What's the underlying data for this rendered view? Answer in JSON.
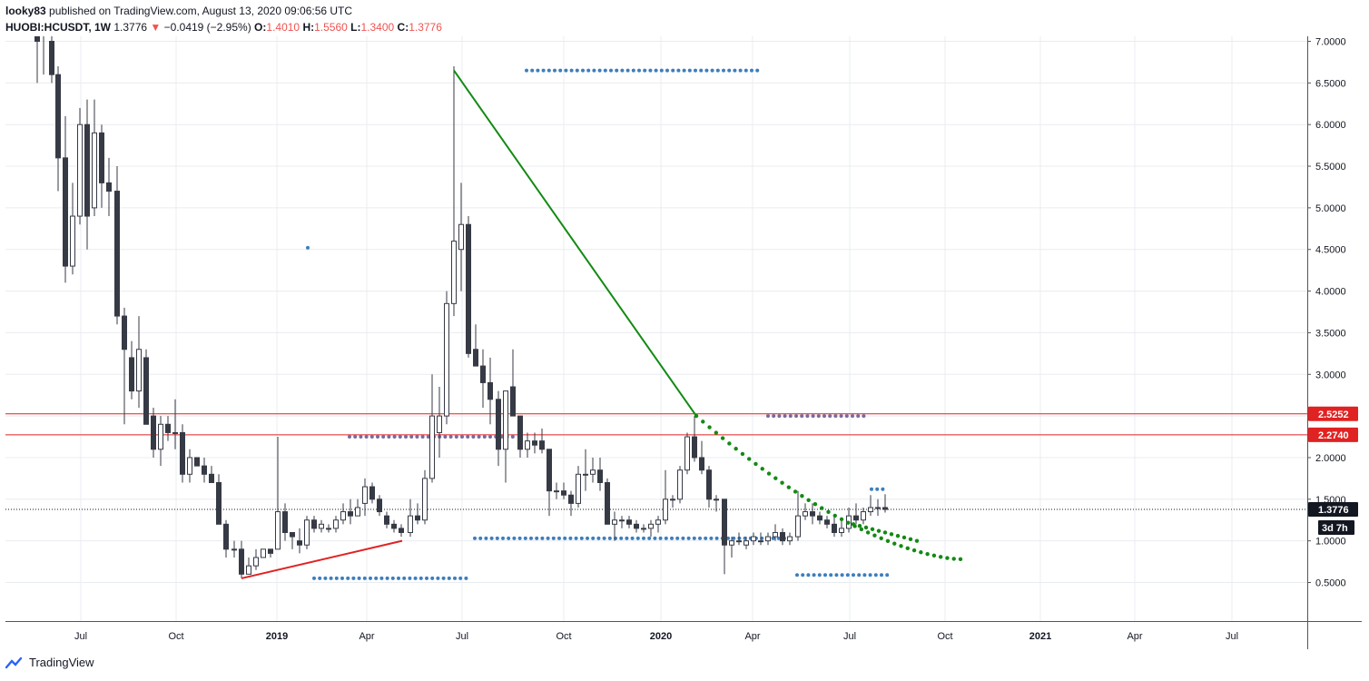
{
  "header": {
    "author": "looky83",
    "published_text": "published on TradingView.com, August 13, 2020 09:06:56 UTC",
    "symbol": "HUOBI:HCUSDT, 1W",
    "last": "1.3776",
    "change": "−0.0419 (−2.95%)",
    "o_label": "O:",
    "o": "1.4010",
    "h_label": "H:",
    "h": "1.5560",
    "l_label": "L:",
    "l": "1.3400",
    "c_label": "C:",
    "c": "1.3776"
  },
  "footer": {
    "brand": "TradingView"
  },
  "colors": {
    "up_fill": "#ffffff",
    "down_fill": "#363a45",
    "wick": "#363a45",
    "grid": "#e9ecf0",
    "resistance": "#e02222",
    "trendline": "#138a13",
    "blue_dots": "#3d7ebd",
    "purple_dots": "#7a6a9e",
    "support_line": "#e02222"
  },
  "chart_data": {
    "type": "candlestick",
    "ylim": [
      0.0,
      7.0
    ],
    "y_ticks": [
      "7.0000",
      "6.5000",
      "6.0000",
      "5.5000",
      "5.0000",
      "4.5000",
      "4.0000",
      "3.5000",
      "3.0000",
      "2.5000",
      "2.0000",
      "1.5000",
      "1.0000",
      "0.5000"
    ],
    "x_ticks": [
      {
        "label": "Jul",
        "x": 89
      },
      {
        "label": "Oct",
        "x": 194
      },
      {
        "label": "2019",
        "x": 305,
        "bold": true
      },
      {
        "label": "Apr",
        "x": 404
      },
      {
        "label": "Jul",
        "x": 509
      },
      {
        "label": "Oct",
        "x": 621
      },
      {
        "label": "2020",
        "x": 728,
        "bold": true
      },
      {
        "label": "Apr",
        "x": 829
      },
      {
        "label": "Jul",
        "x": 936
      },
      {
        "label": "Oct",
        "x": 1041
      },
      {
        "label": "2021",
        "x": 1146,
        "bold": true
      },
      {
        "label": "Apr",
        "x": 1250
      },
      {
        "label": "Jul",
        "x": 1357
      }
    ],
    "price_labels": [
      {
        "value": 2.5252,
        "text": "2.5252",
        "color": "#e02222"
      },
      {
        "value": 2.274,
        "text": "2.2740",
        "color": "#e02222"
      },
      {
        "value": 1.3776,
        "text": "1.3776",
        "color": "#131722"
      }
    ],
    "countdown": "3d 7h",
    "horizontal_lines": [
      2.5252,
      2.274
    ],
    "last_price": 1.3776,
    "candles": [
      {
        "x": 41,
        "o": 7.4,
        "h": 7.6,
        "l": 6.5,
        "c": 7.0
      },
      {
        "x": 48,
        "o": 7.2,
        "h": 7.5,
        "l": 6.6,
        "c": 7.1
      },
      {
        "x": 57,
        "o": 7.0,
        "h": 7.2,
        "l": 6.5,
        "c": 6.6
      },
      {
        "x": 64,
        "o": 6.6,
        "h": 6.7,
        "l": 5.2,
        "c": 5.6
      },
      {
        "x": 72,
        "o": 5.6,
        "h": 6.1,
        "l": 4.1,
        "c": 4.3
      },
      {
        "x": 80,
        "o": 4.3,
        "h": 5.3,
        "l": 4.2,
        "c": 4.9
      },
      {
        "x": 88,
        "o": 4.9,
        "h": 6.2,
        "l": 4.8,
        "c": 6.0
      },
      {
        "x": 96,
        "o": 6.0,
        "h": 6.3,
        "l": 4.5,
        "c": 4.9
      },
      {
        "x": 104,
        "o": 5.0,
        "h": 6.3,
        "l": 4.9,
        "c": 5.9
      },
      {
        "x": 112,
        "o": 5.9,
        "h": 6.0,
        "l": 5.0,
        "c": 5.3
      },
      {
        "x": 120,
        "o": 5.3,
        "h": 5.6,
        "l": 4.9,
        "c": 5.2
      },
      {
        "x": 129,
        "o": 5.2,
        "h": 5.5,
        "l": 3.6,
        "c": 3.7
      },
      {
        "x": 137,
        "o": 3.7,
        "h": 3.8,
        "l": 2.4,
        "c": 3.3
      },
      {
        "x": 145,
        "o": 3.2,
        "h": 3.4,
        "l": 2.7,
        "c": 2.8
      },
      {
        "x": 153,
        "o": 2.8,
        "h": 3.7,
        "l": 2.6,
        "c": 3.3
      },
      {
        "x": 161,
        "o": 3.2,
        "h": 3.3,
        "l": 2.4,
        "c": 2.4
      },
      {
        "x": 169,
        "o": 2.5,
        "h": 2.6,
        "l": 2.0,
        "c": 2.1
      },
      {
        "x": 177,
        "o": 2.1,
        "h": 2.5,
        "l": 1.9,
        "c": 2.4
      },
      {
        "x": 185,
        "o": 2.4,
        "h": 2.5,
        "l": 2.2,
        "c": 2.3
      },
      {
        "x": 193,
        "o": 2.3,
        "h": 2.7,
        "l": 2.1,
        "c": 2.3
      },
      {
        "x": 201,
        "o": 2.3,
        "h": 2.4,
        "l": 1.7,
        "c": 1.8
      },
      {
        "x": 209,
        "o": 1.8,
        "h": 2.1,
        "l": 1.7,
        "c": 2.0
      },
      {
        "x": 217,
        "o": 2.0,
        "h": 2.0,
        "l": 1.9,
        "c": 1.9
      },
      {
        "x": 225,
        "o": 1.9,
        "h": 2.0,
        "l": 1.7,
        "c": 1.8
      },
      {
        "x": 233,
        "o": 1.8,
        "h": 1.9,
        "l": 1.7,
        "c": 1.7
      },
      {
        "x": 241,
        "o": 1.7,
        "h": 1.8,
        "l": 1.2,
        "c": 1.2
      },
      {
        "x": 249,
        "o": 1.2,
        "h": 1.25,
        "l": 0.8,
        "c": 0.9
      },
      {
        "x": 258,
        "o": 0.9,
        "h": 1.0,
        "l": 0.8,
        "c": 0.9
      },
      {
        "x": 266,
        "o": 0.9,
        "h": 1.0,
        "l": 0.55,
        "c": 0.6
      },
      {
        "x": 274,
        "o": 0.6,
        "h": 0.8,
        "l": 0.6,
        "c": 0.7
      },
      {
        "x": 282,
        "o": 0.7,
        "h": 0.9,
        "l": 0.65,
        "c": 0.8
      },
      {
        "x": 290,
        "o": 0.8,
        "h": 0.9,
        "l": 0.8,
        "c": 0.9
      },
      {
        "x": 298,
        "o": 0.9,
        "h": 0.9,
        "l": 0.8,
        "c": 0.85
      },
      {
        "x": 306,
        "o": 0.9,
        "h": 2.25,
        "l": 0.9,
        "c": 1.35
      },
      {
        "x": 314,
        "o": 1.35,
        "h": 1.45,
        "l": 1.0,
        "c": 1.1
      },
      {
        "x": 322,
        "o": 1.1,
        "h": 1.1,
        "l": 0.9,
        "c": 1.05
      },
      {
        "x": 330,
        "o": 1.0,
        "h": 1.15,
        "l": 0.85,
        "c": 0.95
      },
      {
        "x": 338,
        "o": 0.95,
        "h": 1.3,
        "l": 0.9,
        "c": 1.25
      },
      {
        "x": 346,
        "o": 1.25,
        "h": 1.3,
        "l": 1.1,
        "c": 1.15
      },
      {
        "x": 354,
        "o": 1.15,
        "h": 1.25,
        "l": 1.1,
        "c": 1.2
      },
      {
        "x": 362,
        "o": 1.15,
        "h": 1.2,
        "l": 1.1,
        "c": 1.15
      },
      {
        "x": 370,
        "o": 1.15,
        "h": 1.3,
        "l": 1.1,
        "c": 1.25
      },
      {
        "x": 378,
        "o": 1.25,
        "h": 1.45,
        "l": 1.2,
        "c": 1.35
      },
      {
        "x": 386,
        "o": 1.35,
        "h": 1.5,
        "l": 1.2,
        "c": 1.3
      },
      {
        "x": 394,
        "o": 1.3,
        "h": 1.5,
        "l": 1.3,
        "c": 1.4
      },
      {
        "x": 402,
        "o": 1.45,
        "h": 1.75,
        "l": 1.3,
        "c": 1.65
      },
      {
        "x": 410,
        "o": 1.65,
        "h": 1.7,
        "l": 1.45,
        "c": 1.5
      },
      {
        "x": 418,
        "o": 1.5,
        "h": 1.55,
        "l": 1.3,
        "c": 1.35
      },
      {
        "x": 426,
        "o": 1.3,
        "h": 1.35,
        "l": 1.15,
        "c": 1.2
      },
      {
        "x": 434,
        "o": 1.2,
        "h": 1.25,
        "l": 1.1,
        "c": 1.15
      },
      {
        "x": 442,
        "o": 1.15,
        "h": 1.2,
        "l": 1.05,
        "c": 1.1
      },
      {
        "x": 452,
        "o": 1.1,
        "h": 1.5,
        "l": 1.05,
        "c": 1.3
      },
      {
        "x": 460,
        "o": 1.3,
        "h": 1.45,
        "l": 1.2,
        "c": 1.25
      },
      {
        "x": 468,
        "o": 1.25,
        "h": 1.85,
        "l": 1.2,
        "c": 1.75
      },
      {
        "x": 476,
        "o": 1.75,
        "h": 3.0,
        "l": 1.7,
        "c": 2.5
      },
      {
        "x": 484,
        "o": 2.3,
        "h": 2.85,
        "l": 2.0,
        "c": 2.5
      },
      {
        "x": 492,
        "o": 2.5,
        "h": 4.0,
        "l": 2.4,
        "c": 3.85
      },
      {
        "x": 500,
        "o": 3.85,
        "h": 6.7,
        "l": 3.7,
        "c": 4.6
      },
      {
        "x": 508,
        "o": 4.5,
        "h": 5.3,
        "l": 4.0,
        "c": 4.8
      },
      {
        "x": 516,
        "o": 4.8,
        "h": 4.9,
        "l": 3.2,
        "c": 3.25
      },
      {
        "x": 524,
        "o": 3.3,
        "h": 3.6,
        "l": 3.1,
        "c": 3.1
      },
      {
        "x": 532,
        "o": 3.1,
        "h": 3.3,
        "l": 2.6,
        "c": 2.9
      },
      {
        "x": 540,
        "o": 2.9,
        "h": 3.2,
        "l": 2.4,
        "c": 2.7
      },
      {
        "x": 549,
        "o": 2.7,
        "h": 2.8,
        "l": 1.9,
        "c": 2.1
      },
      {
        "x": 557,
        "o": 2.1,
        "h": 2.8,
        "l": 1.7,
        "c": 2.8
      },
      {
        "x": 565,
        "o": 2.85,
        "h": 3.3,
        "l": 2.5,
        "c": 2.5
      },
      {
        "x": 573,
        "o": 2.5,
        "h": 2.5,
        "l": 2.0,
        "c": 2.1
      },
      {
        "x": 581,
        "o": 2.1,
        "h": 2.3,
        "l": 2.0,
        "c": 2.2
      },
      {
        "x": 589,
        "o": 2.2,
        "h": 2.3,
        "l": 2.05,
        "c": 2.15
      },
      {
        "x": 597,
        "o": 2.2,
        "h": 2.35,
        "l": 2.05,
        "c": 2.1
      },
      {
        "x": 605,
        "o": 2.1,
        "h": 2.1,
        "l": 1.3,
        "c": 1.6
      },
      {
        "x": 613,
        "o": 1.6,
        "h": 1.7,
        "l": 1.5,
        "c": 1.6
      },
      {
        "x": 621,
        "o": 1.6,
        "h": 1.7,
        "l": 1.5,
        "c": 1.55
      },
      {
        "x": 629,
        "o": 1.55,
        "h": 1.6,
        "l": 1.3,
        "c": 1.45
      },
      {
        "x": 637,
        "o": 1.45,
        "h": 1.9,
        "l": 1.4,
        "c": 1.8
      },
      {
        "x": 645,
        "o": 1.8,
        "h": 2.1,
        "l": 1.6,
        "c": 1.8
      },
      {
        "x": 653,
        "o": 1.8,
        "h": 2.0,
        "l": 1.7,
        "c": 1.85
      },
      {
        "x": 661,
        "o": 1.85,
        "h": 2.0,
        "l": 1.6,
        "c": 1.7
      },
      {
        "x": 669,
        "o": 1.7,
        "h": 1.75,
        "l": 1.2,
        "c": 1.2
      },
      {
        "x": 677,
        "o": 1.2,
        "h": 1.35,
        "l": 1.0,
        "c": 1.25
      },
      {
        "x": 685,
        "o": 1.25,
        "h": 1.3,
        "l": 1.15,
        "c": 1.25
      },
      {
        "x": 693,
        "o": 1.25,
        "h": 1.3,
        "l": 1.15,
        "c": 1.2
      },
      {
        "x": 701,
        "o": 1.2,
        "h": 1.25,
        "l": 1.1,
        "c": 1.15
      },
      {
        "x": 709,
        "o": 1.15,
        "h": 1.2,
        "l": 1.1,
        "c": 1.15
      },
      {
        "x": 717,
        "o": 1.15,
        "h": 1.25,
        "l": 1.05,
        "c": 1.2
      },
      {
        "x": 725,
        "o": 1.2,
        "h": 1.3,
        "l": 1.1,
        "c": 1.25
      },
      {
        "x": 733,
        "o": 1.25,
        "h": 1.85,
        "l": 1.2,
        "c": 1.5
      },
      {
        "x": 741,
        "o": 1.5,
        "h": 1.55,
        "l": 1.4,
        "c": 1.5
      },
      {
        "x": 749,
        "o": 1.5,
        "h": 1.9,
        "l": 1.45,
        "c": 1.85
      },
      {
        "x": 757,
        "o": 1.85,
        "h": 2.3,
        "l": 1.8,
        "c": 2.25
      },
      {
        "x": 765,
        "o": 2.25,
        "h": 2.5,
        "l": 1.95,
        "c": 2.0
      },
      {
        "x": 773,
        "o": 2.0,
        "h": 2.2,
        "l": 1.8,
        "c": 1.85
      },
      {
        "x": 781,
        "o": 1.85,
        "h": 1.9,
        "l": 1.4,
        "c": 1.5
      },
      {
        "x": 789,
        "o": 1.5,
        "h": 1.55,
        "l": 1.35,
        "c": 1.5
      },
      {
        "x": 798,
        "o": 1.5,
        "h": 1.5,
        "l": 0.6,
        "c": 0.95
      },
      {
        "x": 806,
        "o": 0.95,
        "h": 1.05,
        "l": 0.8,
        "c": 1.0
      },
      {
        "x": 814,
        "o": 1.0,
        "h": 1.1,
        "l": 0.95,
        "c": 1.0
      },
      {
        "x": 822,
        "o": 0.95,
        "h": 1.05,
        "l": 0.9,
        "c": 1.0
      },
      {
        "x": 830,
        "o": 1.0,
        "h": 1.1,
        "l": 0.95,
        "c": 1.05
      },
      {
        "x": 838,
        "o": 1.0,
        "h": 1.1,
        "l": 0.95,
        "c": 1.0
      },
      {
        "x": 846,
        "o": 1.0,
        "h": 1.1,
        "l": 0.95,
        "c": 1.05
      },
      {
        "x": 854,
        "o": 1.05,
        "h": 1.2,
        "l": 1.0,
        "c": 1.1
      },
      {
        "x": 862,
        "o": 1.1,
        "h": 1.15,
        "l": 0.95,
        "c": 1.0
      },
      {
        "x": 870,
        "o": 1.0,
        "h": 1.1,
        "l": 0.95,
        "c": 1.05
      },
      {
        "x": 879,
        "o": 1.05,
        "h": 1.6,
        "l": 1.0,
        "c": 1.3
      },
      {
        "x": 887,
        "o": 1.3,
        "h": 1.45,
        "l": 1.25,
        "c": 1.35
      },
      {
        "x": 895,
        "o": 1.35,
        "h": 1.45,
        "l": 1.2,
        "c": 1.3
      },
      {
        "x": 903,
        "o": 1.3,
        "h": 1.35,
        "l": 1.2,
        "c": 1.25
      },
      {
        "x": 911,
        "o": 1.25,
        "h": 1.3,
        "l": 1.15,
        "c": 1.2
      },
      {
        "x": 919,
        "o": 1.2,
        "h": 1.3,
        "l": 1.05,
        "c": 1.1
      },
      {
        "x": 927,
        "o": 1.1,
        "h": 1.25,
        "l": 1.05,
        "c": 1.15
      },
      {
        "x": 935,
        "o": 1.15,
        "h": 1.4,
        "l": 1.1,
        "c": 1.3
      },
      {
        "x": 943,
        "o": 1.3,
        "h": 1.45,
        "l": 1.2,
        "c": 1.25
      },
      {
        "x": 951,
        "o": 1.25,
        "h": 1.4,
        "l": 1.2,
        "c": 1.35
      },
      {
        "x": 959,
        "o": 1.35,
        "h": 1.55,
        "l": 1.3,
        "c": 1.4
      },
      {
        "x": 967,
        "o": 1.4,
        "h": 1.5,
        "l": 1.3,
        "c": 1.4
      },
      {
        "x": 975,
        "o": 1.4,
        "h": 1.56,
        "l": 1.34,
        "c": 1.3776
      }
    ],
    "drawings": {
      "support_line": {
        "from": [
          266,
          0.55
        ],
        "to": [
          443,
          1.0
        ]
      },
      "trend_line": {
        "from": [
          500,
          6.65
        ],
        "to": [
          767,
          2.5
        ]
      },
      "trend_dots": {
        "from": [
          767,
          2.5
        ],
        "to": [
          1058,
          0.78
        ],
        "curve": true
      },
      "trend_dots_lower": {
        "from": [
          940,
          1.2
        ],
        "to": [
          1010,
          1.0
        ]
      },
      "blue_dot_rows": [
        {
          "x0": 580,
          "x1": 840,
          "y": 6.65
        },
        {
          "x0": 523,
          "x1": 870,
          "y": 1.03
        },
        {
          "x0": 346,
          "x1": 518,
          "y": 0.55
        },
        {
          "x0": 878,
          "x1": 978,
          "y": 0.59
        },
        {
          "x0": 960,
          "x1": 978,
          "y": 1.62
        }
      ],
      "purple_dot_rows": [
        {
          "x0": 385,
          "x1": 570,
          "y": 2.25
        },
        {
          "x0": 846,
          "x1": 955,
          "y": 2.5
        }
      ],
      "single_dot": [
        339,
        4.52
      ]
    }
  }
}
